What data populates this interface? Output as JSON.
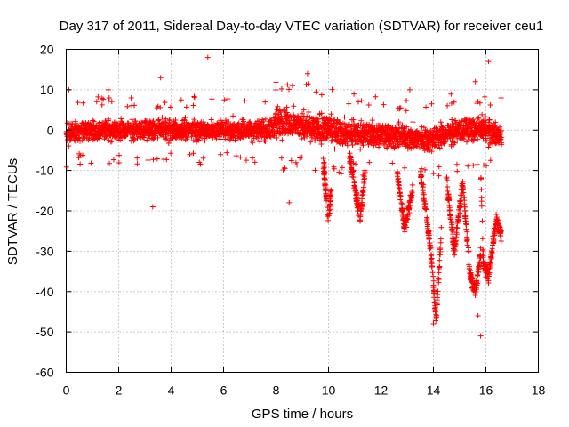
{
  "chart_data": {
    "type": "scatter",
    "title": "Day 317 of 2011, Sidereal Day-to-day VTEC variation (SDTVAR) for receiver ceu1",
    "xlabel": "GPS time / hours",
    "ylabel": "SDTVAR / TECUs",
    "xlim": [
      0,
      18
    ],
    "ylim": [
      -60,
      20
    ],
    "xticks": [
      "0",
      "2",
      "4",
      "6",
      "8",
      "10",
      "12",
      "14",
      "16",
      "18"
    ],
    "yticks": [
      "20",
      "10",
      "0",
      "-10",
      "-20",
      "-30",
      "-40",
      "-50",
      "-60"
    ],
    "grid": true,
    "marker": "+",
    "color": "#ff0000",
    "band": {
      "x": [
        0.0,
        0.5,
        1.0,
        2.0,
        3.0,
        4.0,
        5.0,
        6.0,
        7.0,
        7.8,
        8.0,
        8.5,
        9.0,
        10.0,
        11.0,
        12.0,
        13.0,
        14.0,
        14.5,
        15.0,
        15.5,
        16.0,
        16.3,
        16.6
      ],
      "center": [
        -1,
        0,
        0,
        0,
        0,
        0,
        0,
        0,
        0,
        0,
        2,
        2,
        1,
        0,
        -1,
        -1,
        -2,
        -2,
        -1,
        0,
        0,
        0,
        -1,
        -1
      ],
      "spread": [
        5,
        5,
        5,
        5,
        5,
        5,
        5,
        5,
        5,
        5,
        7,
        7,
        7,
        7,
        6,
        6,
        6,
        6,
        6,
        6,
        6,
        6,
        6,
        6
      ]
    },
    "dips": [
      {
        "x": [
          9.8,
          10.0,
          10.1
        ],
        "y": [
          -8,
          -23,
          -15
        ]
      },
      {
        "x": [
          10.8,
          11.2,
          11.4
        ],
        "y": [
          -6,
          -22,
          -10
        ]
      },
      {
        "x": [
          12.6,
          12.9,
          13.2
        ],
        "y": [
          -10,
          -24,
          -15
        ]
      },
      {
        "x": [
          13.5,
          13.9,
          14.1,
          14.3
        ],
        "y": [
          -10,
          -30,
          -47,
          -25
        ]
      },
      {
        "x": [
          14.5,
          14.8,
          15.1
        ],
        "y": [
          -12,
          -30,
          -14
        ]
      },
      {
        "x": [
          15.1,
          15.4,
          15.6,
          15.8
        ],
        "y": [
          -12,
          -36,
          -40,
          -30
        ]
      },
      {
        "x": [
          15.8,
          15.9,
          16.1,
          16.4,
          16.6
        ],
        "y": [
          -8,
          -33,
          -36,
          -22,
          -26
        ]
      }
    ],
    "outliers": [
      {
        "x": 5.4,
        "y": 18
      },
      {
        "x": 16.1,
        "y": 17
      },
      {
        "x": 3.3,
        "y": -19
      },
      {
        "x": 8.5,
        "y": -18
      },
      {
        "x": 15.8,
        "y": -51
      },
      {
        "x": 15.7,
        "y": -46
      },
      {
        "x": 14.0,
        "y": -48
      },
      {
        "x": 3.6,
        "y": 13
      },
      {
        "x": 0.1,
        "y": 10
      },
      {
        "x": 1.6,
        "y": 10
      },
      {
        "x": 9.2,
        "y": 14
      },
      {
        "x": 13.1,
        "y": 10
      },
      {
        "x": 15.6,
        "y": 12
      }
    ]
  }
}
